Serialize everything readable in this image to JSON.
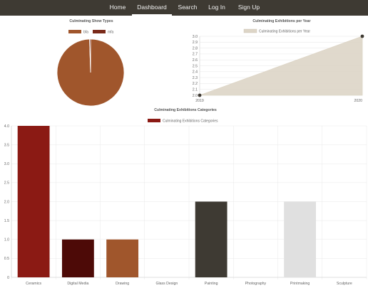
{
  "nav": {
    "items": [
      {
        "label": "Home",
        "active": false
      },
      {
        "label": "Dashboard",
        "active": true
      },
      {
        "label": "Search",
        "active": false
      },
      {
        "label": "Log In",
        "active": false
      },
      {
        "label": "Sign Up",
        "active": false
      }
    ]
  },
  "colors": {
    "navbar": "#3e3a33",
    "bfa": "#a0562c",
    "mfa": "#7a2a1a",
    "line_fill": "#ddd5c6",
    "line_stroke": "#ddd5c6",
    "point": "#3e3a33"
  },
  "chart_data": [
    {
      "type": "pie",
      "title": "Culminating Show Types",
      "labels": [
        "bfa",
        "mfa"
      ],
      "values": [
        99.5,
        0.5
      ],
      "colors": [
        "#a0562c",
        "#7a2a1a"
      ],
      "legend": "top"
    },
    {
      "type": "area",
      "title": "Culminating Exhibitions per Year",
      "series": [
        {
          "name": "Culminating Exhibitions per Year",
          "x": [
            "2019",
            "2020"
          ],
          "values": [
            2.0,
            3.0
          ]
        }
      ],
      "ylim": [
        2.0,
        3.0
      ],
      "yticks": [
        "3.0",
        "2.9",
        "2.8",
        "2.7",
        "2.6",
        "2.5",
        "2.4",
        "2.3",
        "2.2",
        "2.1",
        "2.0"
      ],
      "grid": true,
      "legend": "top"
    },
    {
      "type": "bar",
      "title": "Culminating Exhibitions Categories",
      "categories": [
        "Ceramics",
        "Digital Media",
        "Drawing",
        "Glass Design",
        "Painting",
        "Photography",
        "Printmaking",
        "Sculpture"
      ],
      "series": [
        {
          "name": "Culminating Exhibitions Categories",
          "values": [
            4,
            1,
            1,
            0,
            2,
            0,
            2,
            0
          ]
        }
      ],
      "bar_colors": [
        "#8b1a14",
        "#4d0a07",
        "#a0562c",
        "#cccccc",
        "#3e3a33",
        "#cccccc",
        "#e0e0e0",
        "#cccccc"
      ],
      "legend_color": "#8b1a14",
      "ylim": [
        0,
        4
      ],
      "yticks": [
        "4.0",
        "3.5",
        "3.0",
        "2.5",
        "2.0",
        "1.5",
        "1.0",
        "0.5",
        "0"
      ],
      "grid": true,
      "legend": "top"
    }
  ]
}
